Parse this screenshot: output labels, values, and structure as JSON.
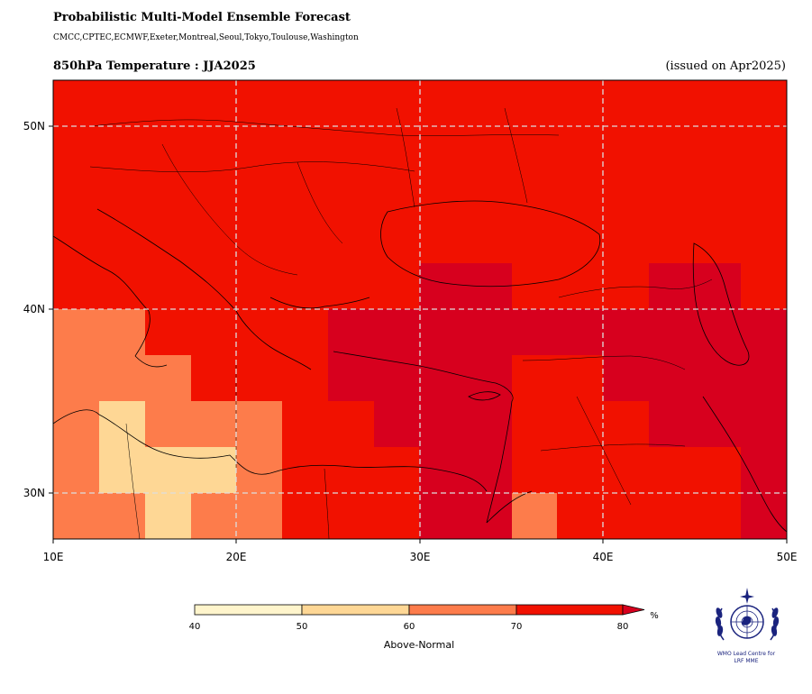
{
  "header": {
    "title": "Probabilistic Multi-Model Ensemble Forecast",
    "models": "CMCC,CPTEC,ECMWF,Exeter,Montreal,Seoul,Tokyo,Toulouse,Washington",
    "subtitle": "850hPa Temperature : JJA2025",
    "issued": "(issued on Apr2025)"
  },
  "map": {
    "lon_range": [
      10,
      50
    ],
    "lat_range": [
      27.5,
      52.5
    ],
    "x_ticks": [
      "10E",
      "20E",
      "30E",
      "40E",
      "50E"
    ],
    "y_ticks": [
      "30N",
      "40N",
      "50N"
    ],
    "grid": true,
    "cell_size_deg": 2.5
  },
  "legend": {
    "label": "Above-Normal",
    "unit": "%",
    "ticks": [
      "40",
      "50",
      "60",
      "70",
      "80"
    ],
    "colors": [
      "#fff5cc",
      "#fed795",
      "#fd7c4b",
      "#f11100",
      "#d7001e"
    ]
  },
  "logo": {
    "caption_line1": "WMO Lead Centre for",
    "caption_line2": "LRF MME",
    "icon": "wmo-emblem-icon"
  }
}
